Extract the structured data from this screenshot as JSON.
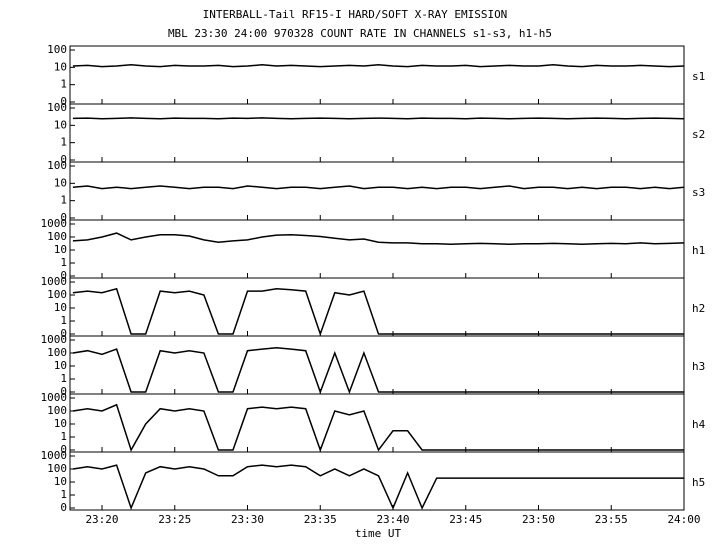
{
  "chart_data": {
    "type": "line",
    "title": "INTERBALL-Tail RF15-I HARD/SOFT X-RAY EMISSION",
    "subtitle": "MBL 23:30 24:00 970328  COUNT RATE IN CHANNELS s1-s3, h1-h5",
    "xlabel": "time UT",
    "log_scale": true,
    "color": "#000000",
    "xlim": [
      17.8,
      60
    ],
    "xticks": [
      {
        "value": 20,
        "label": "23:20"
      },
      {
        "value": 25,
        "label": "23:25"
      },
      {
        "value": 30,
        "label": "23:30"
      },
      {
        "value": 35,
        "label": "23:35"
      },
      {
        "value": 40,
        "label": "23:40"
      },
      {
        "value": 45,
        "label": "23:45"
      },
      {
        "value": 50,
        "label": "23:50"
      },
      {
        "value": 55,
        "label": "23:55"
      },
      {
        "value": 60,
        "label": "24:00"
      }
    ],
    "x": [
      18,
      19,
      20,
      21,
      22,
      23,
      24,
      25,
      26,
      27,
      28,
      29,
      30,
      31,
      32,
      33,
      34,
      35,
      36,
      37,
      38,
      39,
      40,
      41,
      42,
      43,
      44,
      45,
      46,
      47,
      48,
      49,
      50,
      51,
      52,
      53,
      54,
      55,
      56,
      57,
      58,
      59,
      60
    ],
    "series": [
      {
        "name": "s1",
        "ylim": [
          0,
          100
        ],
        "yticks": [
          0,
          1,
          10,
          100
        ],
        "values": [
          12,
          13,
          11,
          12,
          14,
          12,
          11,
          13,
          12,
          12,
          13,
          11,
          12,
          14,
          12,
          13,
          12,
          11,
          12,
          13,
          12,
          14,
          12,
          11,
          13,
          12,
          12,
          13,
          11,
          12,
          13,
          12,
          12,
          14,
          12,
          11,
          13,
          12,
          12,
          13,
          12,
          11,
          12
        ]
      },
      {
        "name": "s2",
        "ylim": [
          0,
          100
        ],
        "yticks": [
          0,
          1,
          10,
          100
        ],
        "values": [
          25,
          26,
          24,
          25,
          27,
          25,
          24,
          26,
          25,
          25,
          24,
          26,
          25,
          27,
          25,
          24,
          25,
          26,
          25,
          24,
          25,
          26,
          25,
          24,
          26,
          25,
          25,
          24,
          26,
          25,
          24,
          25,
          26,
          25,
          24,
          25,
          26,
          25,
          24,
          25,
          26,
          25,
          24
        ]
      },
      {
        "name": "s3",
        "ylim": [
          0,
          100
        ],
        "yticks": [
          0,
          1,
          10,
          100
        ],
        "values": [
          6,
          7,
          5,
          6,
          5,
          6,
          7,
          6,
          5,
          6,
          6,
          5,
          7,
          6,
          5,
          6,
          6,
          5,
          6,
          7,
          5,
          6,
          6,
          5,
          6,
          5,
          6,
          6,
          5,
          6,
          7,
          5,
          6,
          6,
          5,
          6,
          5,
          6,
          6,
          5,
          6,
          5,
          6
        ]
      },
      {
        "name": "h1",
        "ylim": [
          0,
          1000
        ],
        "yticks": [
          0,
          1,
          10,
          100,
          1000
        ],
        "values": [
          50,
          60,
          100,
          200,
          60,
          100,
          150,
          150,
          120,
          60,
          40,
          50,
          60,
          100,
          140,
          150,
          130,
          110,
          80,
          60,
          70,
          40,
          35,
          35,
          30,
          30,
          28,
          30,
          32,
          30,
          28,
          30,
          30,
          32,
          30,
          28,
          30,
          32,
          30,
          35,
          30,
          32,
          35
        ]
      },
      {
        "name": "h2",
        "ylim": [
          0,
          1000
        ],
        "yticks": [
          0,
          1,
          10,
          100,
          1000
        ],
        "values": [
          150,
          200,
          150,
          300,
          0,
          0,
          200,
          150,
          200,
          100,
          0,
          0,
          200,
          200,
          300,
          250,
          200,
          0,
          150,
          100,
          200,
          0,
          0,
          0,
          0,
          0,
          0,
          0,
          0,
          0,
          0,
          0,
          0,
          0,
          0,
          0,
          0,
          0,
          0,
          0,
          0,
          0,
          0
        ]
      },
      {
        "name": "h3",
        "ylim": [
          0,
          1000
        ],
        "yticks": [
          0,
          1,
          10,
          100,
          1000
        ],
        "values": [
          100,
          150,
          80,
          200,
          0,
          0,
          150,
          100,
          150,
          100,
          0,
          0,
          150,
          200,
          250,
          200,
          150,
          0,
          100,
          0,
          100,
          0,
          0,
          0,
          0,
          0,
          0,
          0,
          0,
          0,
          0,
          0,
          0,
          0,
          0,
          0,
          0,
          0,
          0,
          0,
          0,
          0,
          0
        ]
      },
      {
        "name": "h4",
        "ylim": [
          0,
          1000
        ],
        "yticks": [
          0,
          1,
          10,
          100,
          1000
        ],
        "values": [
          100,
          150,
          100,
          300,
          0,
          10,
          150,
          100,
          150,
          100,
          0,
          0,
          150,
          200,
          150,
          200,
          150,
          0,
          100,
          50,
          100,
          0,
          3,
          3,
          0,
          0,
          0,
          0,
          0,
          0,
          0,
          0,
          0,
          0,
          0,
          0,
          0,
          0,
          0,
          0,
          0,
          0,
          0
        ]
      },
      {
        "name": "h5",
        "ylim": [
          0,
          1000
        ],
        "yticks": [
          0,
          1,
          10,
          100,
          1000
        ],
        "values": [
          100,
          150,
          100,
          200,
          0,
          50,
          150,
          100,
          150,
          100,
          30,
          30,
          150,
          200,
          150,
          200,
          150,
          30,
          100,
          30,
          100,
          30,
          0,
          50,
          0,
          20,
          20,
          20,
          20,
          20,
          20,
          20,
          20,
          20,
          20,
          20,
          20,
          20,
          20,
          20,
          20,
          20,
          20
        ]
      }
    ]
  }
}
